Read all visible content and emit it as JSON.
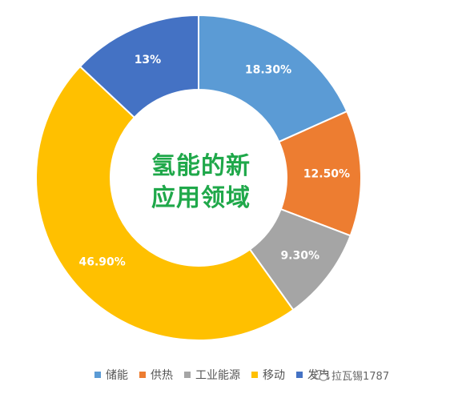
{
  "chart_data": {
    "type": "pie",
    "center_title_lines": [
      "氢能的新",
      "应用领域"
    ],
    "labels": [
      "储能",
      "供热",
      "工业能源",
      "移动",
      "发电"
    ],
    "values": [
      18.3,
      12.5,
      9.3,
      46.9,
      13
    ],
    "data_labels": [
      "18.30%",
      "12.50%",
      "9.30%",
      "46.90%",
      "13%"
    ],
    "colors": [
      "#5b9bd5",
      "#ed7d31",
      "#a5a5a5",
      "#ffc000",
      "#4472c4"
    ],
    "legend_position": "bottom",
    "donut": true
  },
  "watermark": {
    "text": "拉瓦锡1787"
  }
}
